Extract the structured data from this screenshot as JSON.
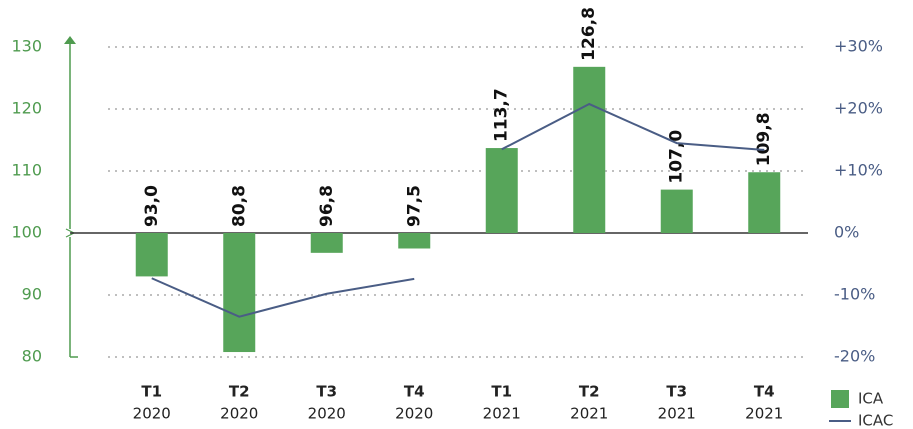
{
  "chart_data": {
    "type": "bar",
    "categories": [
      [
        "T1",
        "2020"
      ],
      [
        "T2",
        "2020"
      ],
      [
        "T3",
        "2020"
      ],
      [
        "T4",
        "2020"
      ],
      [
        "T1",
        "2021"
      ],
      [
        "T2",
        "2021"
      ],
      [
        "T3",
        "2021"
      ],
      [
        "T4",
        "2021"
      ]
    ],
    "series": [
      {
        "name": "ICA",
        "type": "bar",
        "color": "#57a55a",
        "values": [
          93.0,
          80.8,
          96.8,
          97.5,
          113.7,
          126.8,
          107.0,
          109.8
        ],
        "value_labels": [
          "93,0",
          "80,8",
          "96,8",
          "97,5",
          "113,7",
          "126,8",
          "107,0",
          "109,8"
        ]
      },
      {
        "name": "ICAC",
        "type": "line",
        "axis": "y2",
        "color": "#4a5d85",
        "values": [
          -7.3,
          -13.5,
          -9.8,
          -7.4,
          13.5,
          20.8,
          14.5,
          13.4
        ]
      }
    ],
    "ylim": [
      80,
      130
    ],
    "yticks": [
      80,
      90,
      100,
      110,
      120,
      130
    ],
    "y2lim": [
      -20,
      30
    ],
    "y2ticks": [
      {
        "value": -20,
        "label": "-20%"
      },
      {
        "value": -10,
        "label": "-10%"
      },
      {
        "value": 0,
        "label": "0%"
      },
      {
        "value": 10,
        "label": "+10%"
      },
      {
        "value": 20,
        "label": "+20%"
      },
      {
        "value": 30,
        "label": "+30%"
      }
    ],
    "grid": true,
    "legend": "bottom-right"
  }
}
